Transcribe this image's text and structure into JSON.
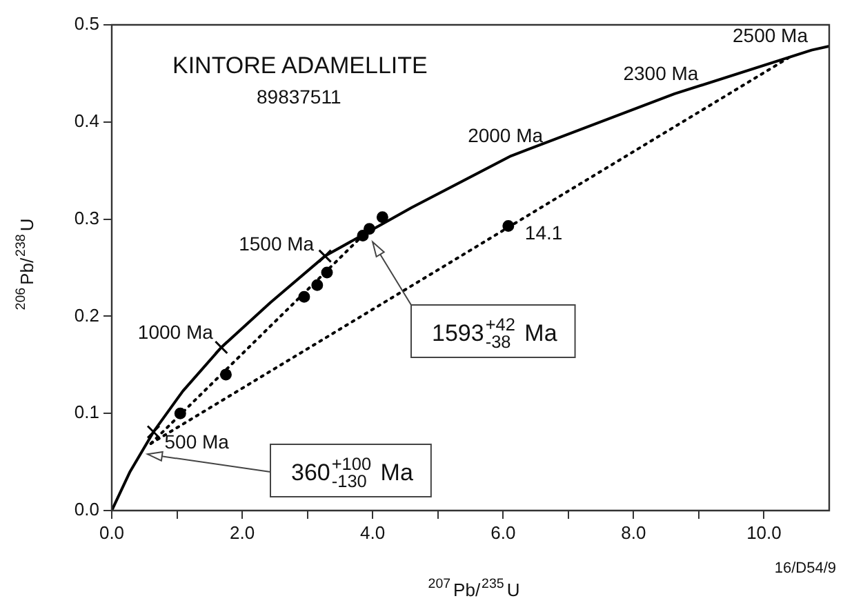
{
  "chart_data": {
    "type": "line",
    "title": "KINTORE ADAMELLITE",
    "xlabel": "$^{207}$Pb/$^{235}$U",
    "ylabel": "$^{206}$Pb/$^{238}$U",
    "xlim": [
      0,
      11
    ],
    "ylim": [
      0,
      0.5
    ],
    "xticks": [
      {
        "value": 0,
        "label": "0.0"
      },
      {
        "value": 1,
        "label": null
      },
      {
        "value": 2,
        "label": "2.0"
      },
      {
        "value": 3,
        "label": null
      },
      {
        "value": 4,
        "label": "4.0"
      },
      {
        "value": 5,
        "label": null
      },
      {
        "value": 6,
        "label": "6.0"
      },
      {
        "value": 7,
        "label": null
      },
      {
        "value": 8,
        "label": "8.0"
      },
      {
        "value": 9,
        "label": null
      },
      {
        "value": 10,
        "label": "10.0"
      }
    ],
    "yticks": [
      {
        "value": 0,
        "label": "0.0"
      },
      {
        "value": 0.1,
        "label": "0.1"
      },
      {
        "value": 0.2,
        "label": "0.2"
      },
      {
        "value": 0.3,
        "label": "0.3"
      },
      {
        "value": 0.4,
        "label": "0.4"
      },
      {
        "value": 0.5,
        "label": "0.5"
      }
    ],
    "grid": false,
    "legend": false,
    "series": [
      {
        "color": "#000000",
        "marker": "none",
        "line_style": "solid",
        "x": [
          0,
          0.28,
          0.64,
          1.09,
          1.68,
          2.43,
          3.27,
          4.6,
          6.12,
          8.63,
          10.73,
          11
        ],
        "values": [
          0,
          0.04,
          0.081,
          0.123,
          0.168,
          0.214,
          0.262,
          0.312,
          0.365,
          0.429,
          0.474,
          0.478
        ]
      },
      {
        "color": "#000000",
        "marker": "none",
        "line_style": "dotted",
        "x": [
          0.6,
          10.4
        ],
        "values": [
          0.069,
          0.467
        ]
      },
      {
        "color": "#000000",
        "marker": "none",
        "line_style": "dotted",
        "x": [
          0.6,
          3.8
        ],
        "values": [
          0.069,
          0.28
        ]
      },
      {
        "type": "scatter",
        "color": "#000000",
        "marker": "circle",
        "x": [
          3.85,
          3.95,
          4.15,
          3.3,
          3.15,
          2.95,
          1.75,
          1.05,
          6.08
        ],
        "values": [
          0.283,
          0.29,
          0.302,
          0.245,
          0.232,
          0.22,
          0.14,
          0.1,
          0.293
        ]
      },
      {
        "type": "scatter",
        "color": "#000000",
        "marker": "cross",
        "x": [
          0.64,
          1.68,
          3.27
        ],
        "values": [
          0.081,
          0.168,
          0.262
        ]
      }
    ],
    "annotations": [
      "89837511",
      {
        "text": "500 Ma",
        "x": 0.64,
        "y": 0.081
      },
      {
        "text": "1000 Ma",
        "x": 1.68,
        "y": 0.168
      },
      {
        "text": "1500 Ma",
        "x": 3.27,
        "y": 0.262
      },
      {
        "text": "2000 Ma",
        "x": 6.12,
        "y": 0.365
      },
      {
        "text": "2300 Ma",
        "x": 8.63,
        "y": 0.429
      },
      {
        "text": "2500 Ma",
        "x": 10.73,
        "y": 0.474
      },
      {
        "text": "14.1",
        "x": 6.08,
        "y": 0.293
      },
      {
        "text": "1593$^{+42}$$_{-38}$ Ma",
        "x": 4.0,
        "y": 0.285
      },
      {
        "text": "360$^{+100}$$_{-130}$ Ma",
        "x": 0.55,
        "y": 0.058
      },
      "16/D54/9"
    ]
  }
}
